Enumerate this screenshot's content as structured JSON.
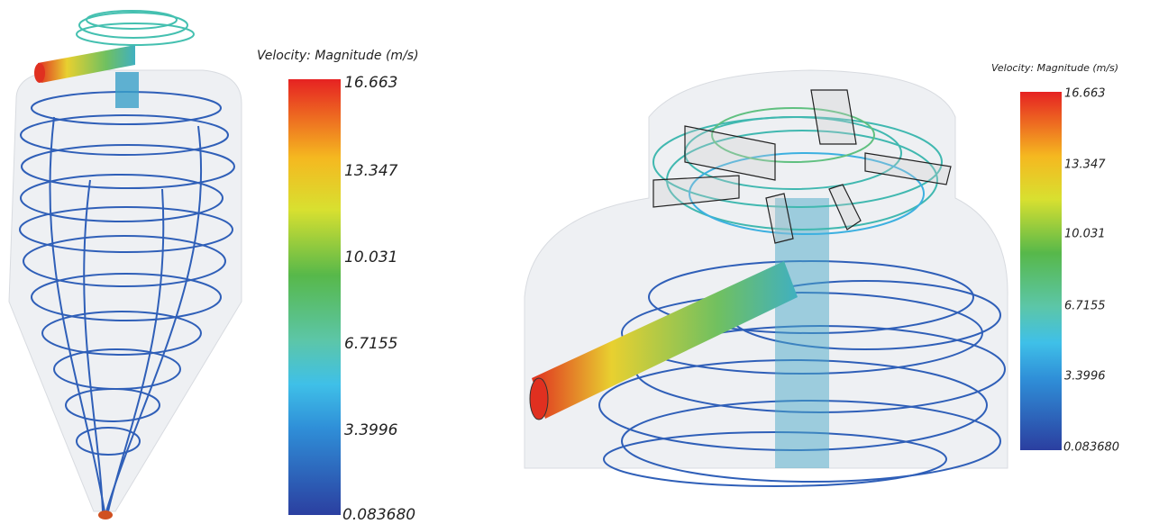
{
  "panels": [
    {
      "colorbar": {
        "title": "Velocity: Magnitude (m/s)",
        "labels": [
          "16.663",
          "13.347",
          "10.031",
          "6.7155",
          "3.3996",
          "0.083680"
        ]
      }
    },
    {
      "colorbar": {
        "title": "Velocity: Magnitude (m/s)",
        "labels": [
          "16.663",
          "13.347",
          "10.031",
          "6.7155",
          "3.3996",
          "0.083680"
        ]
      }
    }
  ]
}
